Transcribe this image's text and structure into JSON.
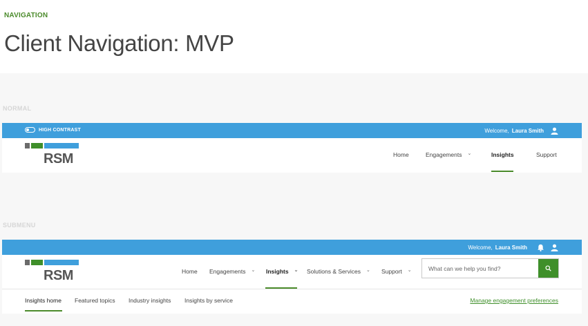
{
  "header": {
    "eyebrow": "NAVIGATION",
    "title": "Client Navigation: MVP"
  },
  "normal": {
    "section_label": "NORMAL",
    "topbar": {
      "high_contrast_label": "HIGH CONTRAST",
      "welcome_prefix": "Welcome,",
      "user_name": "Laura Smith",
      "icons": [
        "user-icon"
      ]
    },
    "logo_text": "RSM",
    "nav": [
      {
        "label": "Home",
        "caret": false,
        "active": false
      },
      {
        "label": "Engagements",
        "caret": true,
        "active": false
      },
      {
        "label": "Insights",
        "caret": false,
        "active": true
      },
      {
        "label": "Support",
        "caret": false,
        "active": false
      }
    ]
  },
  "submenu": {
    "section_label": "SUBMENU",
    "topbar": {
      "welcome_prefix": "Welcome,",
      "user_name": "Laura Smith",
      "icons": [
        "bell-icon",
        "user-icon"
      ]
    },
    "logo_text": "RSM",
    "nav": [
      {
        "label": "Home",
        "caret": false,
        "active": false
      },
      {
        "label": "Engagements",
        "caret": true,
        "active": false
      },
      {
        "label": "Insights",
        "caret": true,
        "active": true
      },
      {
        "label": "Solutions & Services",
        "caret": true,
        "active": false
      },
      {
        "label": "Support",
        "caret": true,
        "active": false
      }
    ],
    "search": {
      "placeholder": "What can we help you find?",
      "icon": "search-icon"
    },
    "subnav": [
      {
        "label": "Insights home",
        "active": true
      },
      {
        "label": "Featured topics",
        "active": false
      },
      {
        "label": "Industry insights",
        "active": false
      },
      {
        "label": "Insights by service",
        "active": false
      }
    ],
    "subnav_link": "Manage engagement preferences"
  },
  "colors": {
    "topbar_blue": "#3f9fdc",
    "accent_green": "#3f8f2a",
    "logo_gray": "#6b6b6b"
  }
}
